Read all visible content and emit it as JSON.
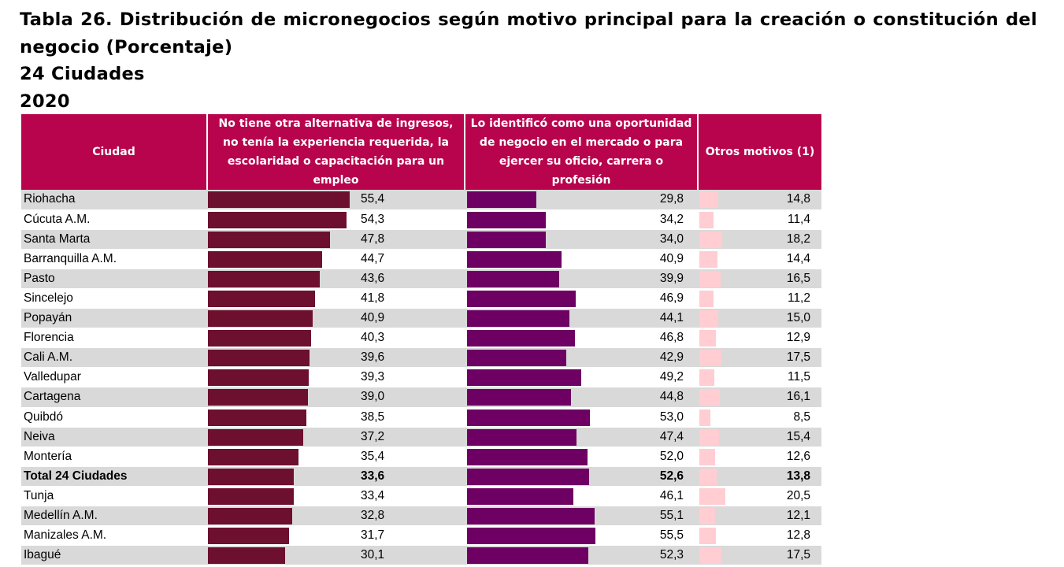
{
  "title": {
    "line1": "Tabla 26. Distribución de micronegocios según motivo principal para la creación o constitución del",
    "line2": "negocio (Porcentaje)",
    "line3": "24 Ciudades",
    "line4": "2020"
  },
  "colors": {
    "header": "#b8044d",
    "series1": "#6d0f2e",
    "series2": "#6d0062",
    "series3": "#ffcdd2",
    "stripe": "#d9d9d9"
  },
  "chart_data": {
    "type": "table",
    "title": "Tabla 26. Distribución de micronegocios según motivo principal para la creación o constitución del negocio (Porcentaje)",
    "subtitle": "24 Ciudades 2020",
    "columns": [
      "Ciudad",
      "No tiene otra alternativa de ingresos, no tenía la experiencia requerida, la escolaridad o capacitación para un empleo",
      "Lo identificó como una oportunidad de negocio en el mercado o para ejercer su oficio, carrera o profesión",
      "Otros motivos (1)"
    ],
    "rows": [
      {
        "city": "Riohacha",
        "v1": 55.4,
        "v2": 29.8,
        "v3": 14.8,
        "t1": "55,4",
        "t2": "29,8",
        "t3": "14,8"
      },
      {
        "city": "Cúcuta A.M.",
        "v1": 54.3,
        "v2": 34.2,
        "v3": 11.4,
        "t1": "54,3",
        "t2": "34,2",
        "t3": "11,4"
      },
      {
        "city": "Santa Marta",
        "v1": 47.8,
        "v2": 34.0,
        "v3": 18.2,
        "t1": "47,8",
        "t2": "34,0",
        "t3": "18,2"
      },
      {
        "city": "Barranquilla A.M.",
        "v1": 44.7,
        "v2": 40.9,
        "v3": 14.4,
        "t1": "44,7",
        "t2": "40,9",
        "t3": "14,4"
      },
      {
        "city": "Pasto",
        "v1": 43.6,
        "v2": 39.9,
        "v3": 16.5,
        "t1": "43,6",
        "t2": "39,9",
        "t3": "16,5"
      },
      {
        "city": "Sincelejo",
        "v1": 41.8,
        "v2": 46.9,
        "v3": 11.2,
        "t1": "41,8",
        "t2": "46,9",
        "t3": "11,2"
      },
      {
        "city": "Popayán",
        "v1": 40.9,
        "v2": 44.1,
        "v3": 15.0,
        "t1": "40,9",
        "t2": "44,1",
        "t3": "15,0"
      },
      {
        "city": "Florencia",
        "v1": 40.3,
        "v2": 46.8,
        "v3": 12.9,
        "t1": "40,3",
        "t2": "46,8",
        "t3": "12,9"
      },
      {
        "city": "Cali A.M.",
        "v1": 39.6,
        "v2": 42.9,
        "v3": 17.5,
        "t1": "39,6",
        "t2": "42,9",
        "t3": "17,5"
      },
      {
        "city": "Valledupar",
        "v1": 39.3,
        "v2": 49.2,
        "v3": 11.5,
        "t1": "39,3",
        "t2": "49,2",
        "t3": "11,5"
      },
      {
        "city": "Cartagena",
        "v1": 39.0,
        "v2": 44.8,
        "v3": 16.1,
        "t1": "39,0",
        "t2": "44,8",
        "t3": "16,1"
      },
      {
        "city": "Quibdó",
        "v1": 38.5,
        "v2": 53.0,
        "v3": 8.5,
        "t1": "38,5",
        "t2": "53,0",
        "t3": "8,5"
      },
      {
        "city": "Neiva",
        "v1": 37.2,
        "v2": 47.4,
        "v3": 15.4,
        "t1": "37,2",
        "t2": "47,4",
        "t3": "15,4"
      },
      {
        "city": "Montería",
        "v1": 35.4,
        "v2": 52.0,
        "v3": 12.6,
        "t1": "35,4",
        "t2": "52,0",
        "t3": "12,6"
      },
      {
        "city": "Total 24 Ciudades",
        "v1": 33.6,
        "v2": 52.6,
        "v3": 13.8,
        "t1": "33,6",
        "t2": "52,6",
        "t3": "13,8",
        "total": true
      },
      {
        "city": "Tunja",
        "v1": 33.4,
        "v2": 46.1,
        "v3": 20.5,
        "t1": "33,4",
        "t2": "46,1",
        "t3": "20,5"
      },
      {
        "city": "Medellín A.M.",
        "v1": 32.8,
        "v2": 55.1,
        "v3": 12.1,
        "t1": "32,8",
        "t2": "55,1",
        "t3": "12,1"
      },
      {
        "city": "Manizales A.M.",
        "v1": 31.7,
        "v2": 55.5,
        "v3": 12.8,
        "t1": "31,7",
        "t2": "55,5",
        "t3": "12,8"
      },
      {
        "city": "Ibagué",
        "v1": 30.1,
        "v2": 52.3,
        "v3": 17.5,
        "t1": "30,1",
        "t2": "52,3",
        "t3": "17,5"
      }
    ]
  }
}
